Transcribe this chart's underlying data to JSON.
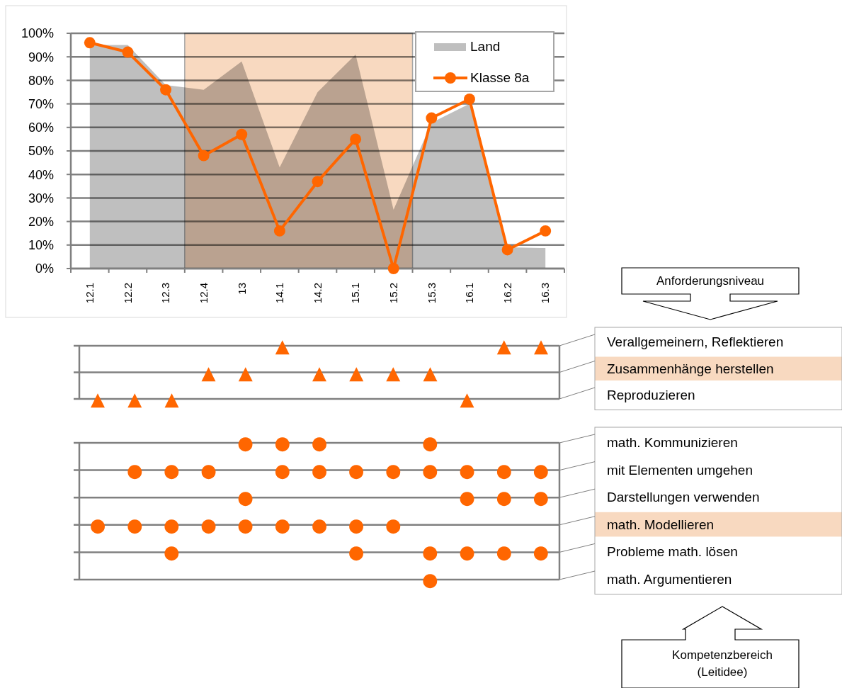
{
  "chart_data": [
    {
      "type": "area",
      "categories": [
        "12.1",
        "12.2",
        "12.3",
        "12.4",
        "13",
        "14.1",
        "14.2",
        "15.1",
        "15.2",
        "15.3",
        "16.1",
        "16.2",
        "16.3"
      ],
      "series": [
        {
          "name": "Land",
          "type": "area",
          "color": "#bfbfbf",
          "values": [
            95,
            95,
            78,
            76,
            88,
            43,
            75,
            91,
            25,
            62,
            70,
            9,
            8.7
          ]
        },
        {
          "name": "Klasse 8a",
          "type": "line",
          "color": "#ff6600",
          "marker": "circle",
          "values": [
            96,
            92,
            76,
            48,
            57,
            16,
            37,
            55,
            0,
            64,
            72,
            8,
            16
          ]
        }
      ],
      "ylim": [
        0,
        100
      ],
      "yticks": [
        {
          "value": 0,
          "label": "0%"
        },
        {
          "value": 10,
          "label": "10%"
        },
        {
          "value": 20,
          "label": "20%"
        },
        {
          "value": 30,
          "label": "30%"
        },
        {
          "value": 40,
          "label": "40%"
        },
        {
          "value": 50,
          "label": "50%"
        },
        {
          "value": 60,
          "label": "60%"
        },
        {
          "value": 70,
          "label": "70%"
        },
        {
          "value": 80,
          "label": "80%"
        },
        {
          "value": 90,
          "label": "90%"
        },
        {
          "value": 100,
          "label": "100%"
        }
      ],
      "grid": "y",
      "legend": "top right",
      "bands": [
        {
          "axis": "x",
          "from": "12.4",
          "to": "15.2",
          "color": "#f8d9c0"
        }
      ]
    },
    {
      "type": "heatmap",
      "categories": [
        null,
        null,
        null,
        null,
        null,
        null,
        null,
        null,
        null,
        null,
        null,
        null,
        null
      ],
      "y_categories": [
        "Verallgemeinern, Reflektieren",
        "Zusammenhänge herstellen",
        "Reproduzieren"
      ],
      "cells": [
        [
          null,
          null,
          null,
          null,
          null,
          "▲",
          null,
          null,
          null,
          null,
          null,
          "▲",
          "▲"
        ],
        [
          null,
          null,
          null,
          "▲",
          "▲",
          null,
          "▲",
          "▲",
          "▲",
          "▲",
          null,
          null,
          null
        ],
        [
          "▲",
          "▲",
          "▲",
          null,
          null,
          null,
          null,
          null,
          null,
          null,
          "▲",
          null,
          null
        ]
      ],
      "color": "#ff6600",
      "grid": "y",
      "tick_labels": "y",
      "annotations": [
        "Anforderungsniveau"
      ]
    },
    {
      "type": "heatmap",
      "categories": [
        null,
        null,
        null,
        null,
        null,
        null,
        null,
        null,
        null,
        null,
        null,
        null,
        null
      ],
      "y_categories": [
        "math. Kommunizieren",
        "mit Elementen umgehen",
        "Darstellungen verwenden",
        "math. Modellieren",
        "Probleme math. lösen",
        "math. Argumentieren"
      ],
      "cells": [
        [
          null,
          null,
          null,
          null,
          "●",
          "●",
          "●",
          null,
          null,
          "●",
          null,
          null,
          null
        ],
        [
          null,
          "●",
          "●",
          "●",
          null,
          "●",
          "●",
          "●",
          "●",
          "●",
          "●",
          "●",
          "●"
        ],
        [
          null,
          null,
          null,
          null,
          "●",
          null,
          null,
          null,
          null,
          null,
          "●",
          "●",
          "●"
        ],
        [
          "●",
          "●",
          "●",
          "●",
          "●",
          "●",
          "●",
          "●",
          "●",
          null,
          null,
          null,
          null
        ],
        [
          null,
          null,
          "●",
          null,
          null,
          null,
          null,
          "●",
          null,
          "●",
          "●",
          "●",
          "●"
        ],
        [
          null,
          null,
          null,
          null,
          null,
          null,
          null,
          null,
          null,
          "●",
          null,
          null,
          null
        ]
      ],
      "color": "#ff6600",
      "grid": "y",
      "tick_labels": "y",
      "annotations": [
        "Kompetenzbereich (Leitidee)"
      ]
    }
  ]
}
